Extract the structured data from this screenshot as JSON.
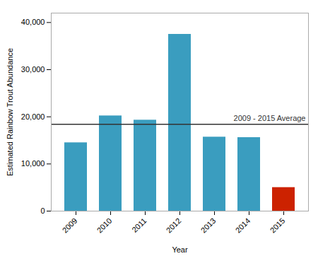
{
  "chart_data": {
    "type": "bar",
    "categories": [
      "2009",
      "2010",
      "2011",
      "2012",
      "2013",
      "2014",
      "2015"
    ],
    "values": [
      14500,
      20200,
      19300,
      37500,
      15700,
      15600,
      5000
    ],
    "colors": [
      "#3a9dbf",
      "#3a9dbf",
      "#3a9dbf",
      "#3a9dbf",
      "#3a9dbf",
      "#3a9dbf",
      "#cc2200"
    ],
    "xlabel": "Year",
    "ylabel": "Estimated Rainbow Trout Abundance",
    "ylim": [
      0,
      42000
    ],
    "yticks": [
      0,
      {
        "value": 10000,
        "label": "10,000"
      },
      {
        "value": 20000,
        "label": "20,000"
      },
      {
        "value": 30000,
        "label": "30,000"
      },
      {
        "value": 40000,
        "label": "40,000"
      }
    ],
    "grid": false,
    "annotations": [
      {
        "type": "hline",
        "y": 18400,
        "text": "2009 - 2015 Average",
        "color": "#333333"
      }
    ]
  }
}
